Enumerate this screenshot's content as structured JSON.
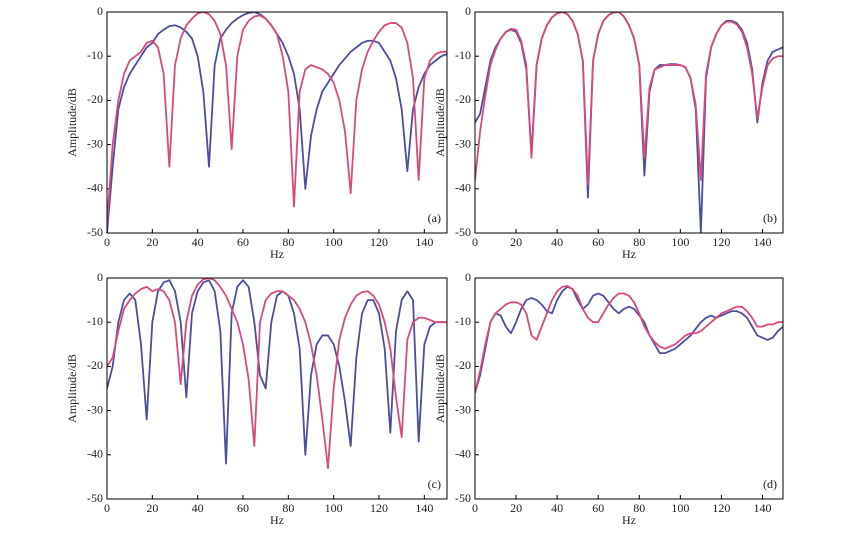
{
  "chart_data": [
    {
      "type": "line",
      "annotation": "(a)",
      "xlabel": "Hz",
      "ylabel": "Amplitude/dB",
      "xlim": [
        0,
        150
      ],
      "xticks": [
        0,
        20,
        40,
        60,
        80,
        100,
        120,
        140
      ],
      "ylim": [
        -50,
        0
      ],
      "yticks": [
        -50,
        -40,
        -30,
        -20,
        -10,
        0
      ],
      "x": [
        0,
        2.5,
        5,
        7.5,
        10,
        12.5,
        15,
        17.5,
        20,
        22.5,
        25,
        27.5,
        30,
        32.5,
        35,
        37.5,
        40,
        42.5,
        45,
        47.5,
        50,
        52.5,
        55,
        57.5,
        60,
        62.5,
        65,
        67.5,
        70,
        72.5,
        75,
        77.5,
        80,
        82.5,
        85,
        87.5,
        90,
        92.5,
        95,
        97.5,
        100,
        102.5,
        105,
        107.5,
        110,
        112.5,
        115,
        117.5,
        120,
        122.5,
        125,
        127.5,
        130,
        132.5,
        135,
        137.5,
        140,
        142.5,
        145,
        147.5,
        150
      ],
      "series": [
        {
          "color": "#4b4f9c",
          "values": [
            -50,
            -35,
            -22,
            -17,
            -14,
            -12,
            -10,
            -8,
            -7,
            -5,
            -4,
            -3.2,
            -3,
            -3.5,
            -4.5,
            -6,
            -10,
            -18,
            -35,
            -12,
            -6,
            -4,
            -2.5,
            -1.5,
            -0.7,
            -0.2,
            0,
            -0.5,
            -1.5,
            -3,
            -5,
            -7,
            -10,
            -14,
            -22,
            -40,
            -28,
            -22,
            -18,
            -16,
            -14,
            -12,
            -10.5,
            -9,
            -8,
            -7,
            -6.5,
            -6.5,
            -7,
            -9,
            -11,
            -15,
            -22,
            -36,
            -22,
            -17,
            -14,
            -12,
            -11,
            -10,
            -9.5
          ]
        },
        {
          "color": "#d94a7c",
          "values": [
            -48,
            -30,
            -20,
            -14,
            -11,
            -10,
            -9,
            -7,
            -6.5,
            -8,
            -14,
            -35,
            -12,
            -6,
            -3,
            -1.5,
            -0.3,
            0,
            -0.5,
            -2,
            -5,
            -12,
            -31,
            -10,
            -4,
            -2,
            -1,
            -0.8,
            -1.5,
            -3,
            -5,
            -10,
            -18,
            -44,
            -18,
            -13,
            -12,
            -12.5,
            -13,
            -14,
            -16,
            -20,
            -27,
            -41,
            -20,
            -13,
            -9,
            -6.5,
            -4.5,
            -3,
            -2.5,
            -2.5,
            -3.5,
            -7,
            -15,
            -38,
            -15,
            -11,
            -9.5,
            -9,
            -9
          ]
        }
      ]
    },
    {
      "type": "line",
      "annotation": "(b)",
      "xlabel": "Hz",
      "ylabel": "Amplitude/dB",
      "xlim": [
        0,
        150
      ],
      "xticks": [
        0,
        20,
        40,
        60,
        80,
        100,
        120,
        140
      ],
      "ylim": [
        -50,
        0
      ],
      "yticks": [
        -50,
        -40,
        -30,
        -20,
        -10,
        0
      ],
      "x": [
        0,
        2.5,
        5,
        7.5,
        10,
        12.5,
        15,
        17.5,
        20,
        22.5,
        25,
        27.5,
        30,
        32.5,
        35,
        37.5,
        40,
        42.5,
        45,
        47.5,
        50,
        52.5,
        55,
        57.5,
        60,
        62.5,
        65,
        67.5,
        70,
        72.5,
        75,
        77.5,
        80,
        82.5,
        85,
        87.5,
        90,
        92.5,
        95,
        97.5,
        100,
        102.5,
        105,
        107.5,
        110,
        112.5,
        115,
        117.5,
        120,
        122.5,
        125,
        127.5,
        130,
        132.5,
        135,
        137.5,
        140,
        142.5,
        145,
        147.5,
        150
      ],
      "series": [
        {
          "color": "#4b4f9c",
          "values": [
            -25,
            -23,
            -17,
            -11,
            -8,
            -6,
            -4.5,
            -4,
            -4.5,
            -7,
            -13,
            -32,
            -12,
            -6,
            -3,
            -1.2,
            -0.3,
            0,
            -0.5,
            -2,
            -5,
            -11,
            -42,
            -11,
            -5,
            -2,
            -0.7,
            -0.1,
            0,
            -1,
            -3,
            -6,
            -12,
            -37,
            -18,
            -13,
            -12,
            -12,
            -11.8,
            -11.8,
            -12,
            -12.5,
            -15,
            -22,
            -50,
            -15,
            -8,
            -5,
            -3,
            -2,
            -2,
            -2.5,
            -4,
            -7,
            -13,
            -25,
            -16,
            -11,
            -9,
            -8.5,
            -8
          ]
        },
        {
          "color": "#d94a7c",
          "values": [
            -38,
            -27,
            -19,
            -12,
            -8.5,
            -6,
            -4.5,
            -3.8,
            -4,
            -6.5,
            -12,
            -33,
            -12,
            -6,
            -3,
            -1.2,
            -0.3,
            0,
            -0.5,
            -2,
            -5,
            -11,
            -39,
            -11,
            -5,
            -2,
            -0.7,
            -0.1,
            0,
            -1,
            -3,
            -6,
            -12,
            -33,
            -17,
            -13,
            -12.5,
            -12,
            -12,
            -12,
            -12,
            -12.5,
            -15,
            -21,
            -38,
            -14,
            -8,
            -5,
            -3,
            -2.2,
            -2.2,
            -2.8,
            -4.5,
            -8,
            -14,
            -24,
            -17,
            -12,
            -10.5,
            -10,
            -10
          ]
        }
      ]
    },
    {
      "type": "line",
      "annotation": "(c)",
      "xlabel": "Hz",
      "ylabel": "Amplitude/dB",
      "xlim": [
        0,
        150
      ],
      "xticks": [
        0,
        20,
        40,
        60,
        80,
        100,
        120,
        140
      ],
      "ylim": [
        -50,
        0
      ],
      "yticks": [
        -50,
        -40,
        -30,
        -20,
        -10,
        0
      ],
      "x": [
        0,
        2.5,
        5,
        7.5,
        10,
        12.5,
        15,
        17.5,
        20,
        22.5,
        25,
        27.5,
        30,
        32.5,
        35,
        37.5,
        40,
        42.5,
        45,
        47.5,
        50,
        52.5,
        55,
        57.5,
        60,
        62.5,
        65,
        67.5,
        70,
        72.5,
        75,
        77.5,
        80,
        82.5,
        85,
        87.5,
        90,
        92.5,
        95,
        97.5,
        100,
        102.5,
        105,
        107.5,
        110,
        112.5,
        115,
        117.5,
        120,
        122.5,
        125,
        127.5,
        130,
        132.5,
        135,
        137.5,
        140,
        142.5,
        145,
        147.5,
        150
      ],
      "series": [
        {
          "color": "#4b4f9c",
          "values": [
            -25,
            -20,
            -10,
            -5,
            -3.5,
            -5,
            -15,
            -32,
            -10,
            -3,
            -1,
            -0.5,
            -3,
            -10,
            -27,
            -8,
            -3,
            -1,
            -0.5,
            -3,
            -12,
            -42,
            -8,
            -2,
            -0.5,
            -2,
            -10,
            -22,
            -25,
            -10,
            -4,
            -3,
            -4,
            -8,
            -16,
            -40,
            -22,
            -15,
            -13,
            -13,
            -15,
            -20,
            -28,
            -38,
            -18,
            -8,
            -5,
            -5,
            -8,
            -16,
            -35,
            -12,
            -5,
            -3,
            -5,
            -37,
            -15,
            -11,
            -10,
            -10,
            -10
          ]
        },
        {
          "color": "#d94a7c",
          "values": [
            -20,
            -18,
            -12,
            -7,
            -5,
            -3.5,
            -2.5,
            -2,
            -3,
            -2.5,
            -3,
            -5,
            -10,
            -24,
            -10,
            -4,
            -1.5,
            -0.3,
            0,
            -0.5,
            -2,
            -4,
            -7,
            -10,
            -15,
            -23,
            -38,
            -10,
            -5,
            -3.5,
            -3,
            -3,
            -4,
            -5,
            -7,
            -10,
            -15,
            -22,
            -32,
            -43,
            -25,
            -14,
            -9,
            -6,
            -4,
            -3.2,
            -3,
            -4,
            -6,
            -10,
            -16,
            -27,
            -36,
            -14,
            -10,
            -9,
            -9,
            -9.5,
            -10,
            -10,
            -10
          ]
        }
      ]
    },
    {
      "type": "line",
      "annotation": "(d)",
      "xlabel": "Hz",
      "ylabel": "Amplitude/dB",
      "xlim": [
        0,
        150
      ],
      "xticks": [
        0,
        20,
        40,
        60,
        80,
        100,
        120,
        140
      ],
      "ylim": [
        -50,
        0
      ],
      "yticks": [
        -50,
        -40,
        -30,
        -20,
        -10,
        0
      ],
      "x": [
        0,
        2.5,
        5,
        7.5,
        10,
        12.5,
        15,
        17.5,
        20,
        22.5,
        25,
        27.5,
        30,
        32.5,
        35,
        37.5,
        40,
        42.5,
        45,
        47.5,
        50,
        52.5,
        55,
        57.5,
        60,
        62.5,
        65,
        67.5,
        70,
        72.5,
        75,
        77.5,
        80,
        82.5,
        85,
        87.5,
        90,
        92.5,
        95,
        97.5,
        100,
        102.5,
        105,
        107.5,
        110,
        112.5,
        115,
        117.5,
        120,
        122.5,
        125,
        127.5,
        130,
        132.5,
        135,
        137.5,
        140,
        142.5,
        145,
        147.5,
        150
      ],
      "series": [
        {
          "color": "#4b4f9c",
          "values": [
            -26,
            -22,
            -16,
            -10,
            -8,
            -8.5,
            -11,
            -12.5,
            -10,
            -7,
            -5,
            -4.5,
            -5,
            -6,
            -7.5,
            -8,
            -5,
            -3,
            -2,
            -2.5,
            -5,
            -7,
            -6,
            -4,
            -3.5,
            -4,
            -5.5,
            -7,
            -8,
            -7,
            -6.5,
            -7,
            -8.5,
            -10,
            -13,
            -15,
            -17,
            -17,
            -16.5,
            -16,
            -15,
            -14,
            -13,
            -11.5,
            -10,
            -9,
            -8.5,
            -9,
            -8.5,
            -8,
            -7.5,
            -7.5,
            -8,
            -9,
            -11,
            -13,
            -13.5,
            -14,
            -13.5,
            -12,
            -11
          ]
        },
        {
          "color": "#d94a7c",
          "values": [
            -26,
            -21,
            -15,
            -10,
            -8,
            -7,
            -6,
            -5.5,
            -5.5,
            -6,
            -8,
            -13,
            -14,
            -11,
            -8,
            -5,
            -3,
            -2,
            -1.8,
            -2.5,
            -4,
            -7,
            -9,
            -10,
            -10,
            -8,
            -6,
            -4.5,
            -3.5,
            -3.5,
            -4,
            -5.5,
            -8,
            -11,
            -13,
            -14.5,
            -15.5,
            -16,
            -15.5,
            -15,
            -14,
            -13,
            -12.5,
            -12.5,
            -12,
            -11,
            -10,
            -9,
            -8,
            -7.5,
            -7,
            -6.5,
            -6.5,
            -7.5,
            -9,
            -11,
            -11,
            -10.5,
            -10.5,
            -10,
            -10
          ]
        }
      ]
    }
  ]
}
